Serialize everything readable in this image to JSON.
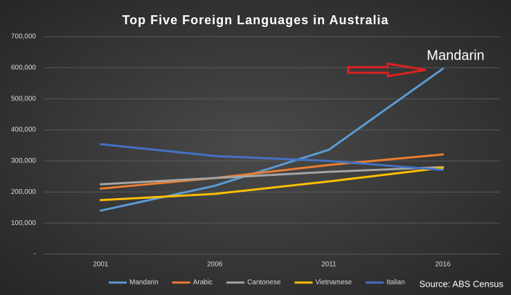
{
  "chart_data": {
    "type": "line",
    "title": "Top Five Foreign Languages  in Australia",
    "categories": [
      "2001",
      "2006",
      "2011",
      "2016"
    ],
    "series": [
      {
        "name": "Mandarin",
        "color": "#5b9bd5",
        "values": [
          140000,
          220000,
          336000,
          597000
        ]
      },
      {
        "name": "Arabic",
        "color": "#ed7d31",
        "values": [
          211000,
          245000,
          287000,
          321000
        ]
      },
      {
        "name": "Cantonese",
        "color": "#a5a5a5",
        "values": [
          225000,
          245000,
          265000,
          280000
        ]
      },
      {
        "name": "Vietnamese",
        "color": "#ffc000",
        "values": [
          174000,
          194000,
          234000,
          278000
        ]
      },
      {
        "name": "Italian",
        "color": "#4472c4",
        "values": [
          354000,
          316000,
          300000,
          271000
        ]
      }
    ],
    "ylim": [
      0,
      700000
    ],
    "yticks": [
      {
        "value": 0,
        "label": "-"
      },
      {
        "value": 100000,
        "label": "100,000"
      },
      {
        "value": 200000,
        "label": "200,000"
      },
      {
        "value": 300000,
        "label": "300,000"
      },
      {
        "value": 400000,
        "label": "400,000"
      },
      {
        "value": 500000,
        "label": "500,000"
      },
      {
        "value": 600000,
        "label": "600,000"
      },
      {
        "value": 700000,
        "label": "700,000"
      }
    ],
    "grid": true,
    "legend": "bottom",
    "annotation": "Mandarin",
    "source": "Source: ABS Census"
  }
}
